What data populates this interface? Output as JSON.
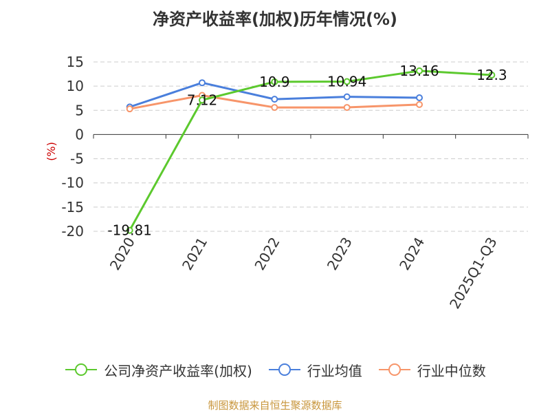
{
  "title": "净资产收益率(加权)历年情况(%)",
  "source": "制图数据来自恒生聚源数据库",
  "colors": {
    "company": "#5cc92e",
    "industry_avg": "#4a7fdc",
    "industry_median": "#f7956a",
    "ylabel": "#cc0000",
    "grid": "#cccccc",
    "axis": "#333333"
  },
  "chart_data": {
    "type": "line",
    "title": "净资产收益率(加权)历年情况(%)",
    "xlabel": "",
    "ylabel": "(%)",
    "ylim": [
      -20,
      15
    ],
    "yticks": [
      15,
      10,
      5,
      0,
      -5,
      -10,
      -15,
      -20
    ],
    "grid": true,
    "legend_position": "bottom",
    "categories": [
      "2020",
      "2021",
      "2022",
      "2023",
      "2024",
      "2025Q1-Q3"
    ],
    "series": [
      {
        "name": "公司净资产收益率(加权)",
        "values": [
          -19.81,
          7.12,
          10.9,
          10.94,
          13.16,
          12.3
        ],
        "labels": [
          "-19.81",
          "7.12",
          "10.9",
          "10.94",
          "13.16",
          "12.3"
        ]
      },
      {
        "name": "行业均值",
        "values": [
          5.7,
          10.7,
          7.3,
          7.8,
          7.6,
          null
        ]
      },
      {
        "name": "行业中位数",
        "values": [
          5.3,
          8.1,
          5.6,
          5.6,
          6.2,
          null
        ]
      }
    ]
  }
}
